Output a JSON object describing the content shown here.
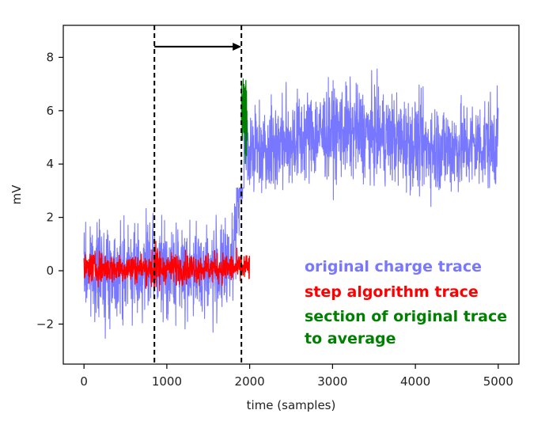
{
  "chart_data": {
    "type": "line",
    "title": "",
    "xlabel": "time (samples)",
    "ylabel": "mV",
    "xlim": [
      -250,
      5250
    ],
    "ylim": [
      -3.5,
      9.2
    ],
    "x_ticks": [
      0,
      1000,
      2000,
      3000,
      4000,
      5000
    ],
    "x_tick_labels": [
      "0",
      "1000",
      "2000",
      "3000",
      "4000",
      "5000"
    ],
    "y_ticks": [
      -2,
      0,
      2,
      4,
      6,
      8
    ],
    "y_tick_labels": [
      "−2",
      "0",
      "2",
      "4",
      "6",
      "8"
    ],
    "grid": false,
    "legend_placement": "lower-right",
    "series": [
      {
        "name": "original charge trace",
        "color": "#7777ff",
        "description_x_range": [
          0,
          5000
        ],
        "segments": [
          {
            "x_start": 0,
            "x_end": 1700,
            "mean": 0.0,
            "noise_range": [
              -2.8,
              3.1
            ]
          },
          {
            "x_start": 1700,
            "x_end": 1930,
            "mean_start": 0.0,
            "mean_end": 5.0,
            "noise_range": [
              -2.0,
              5.8
            ]
          },
          {
            "x_start": 1930,
            "x_end": 5000,
            "mean": 4.9,
            "noise_range": [
              1.3,
              8.5
            ]
          }
        ]
      },
      {
        "name": "step algorithm trace",
        "color": "#ff0000",
        "x_range": [
          0,
          2000
        ],
        "mean": 0.1,
        "noise_range": [
          -0.9,
          1.6
        ]
      },
      {
        "name": "section of original trace to average",
        "color": "#008000",
        "x_range": [
          1900,
          1970
        ],
        "mean": 5.8,
        "noise_range": [
          4.0,
          7.6
        ]
      }
    ],
    "annotations": [
      {
        "type": "vline",
        "x": 850,
        "style": "dashed",
        "color": "#000000"
      },
      {
        "type": "vline",
        "x": 1900,
        "style": "dashed",
        "color": "#000000"
      },
      {
        "type": "arrow",
        "x_from": 850,
        "x_to": 1900,
        "y": 8.4,
        "color": "#000000"
      }
    ]
  },
  "legend": {
    "line1": "original charge trace",
    "line2": "step algorithm trace",
    "line3": "section of original trace",
    "line4": "to average",
    "color1": "#7777ff",
    "color2": "#ff0000",
    "color3": "#008000"
  }
}
